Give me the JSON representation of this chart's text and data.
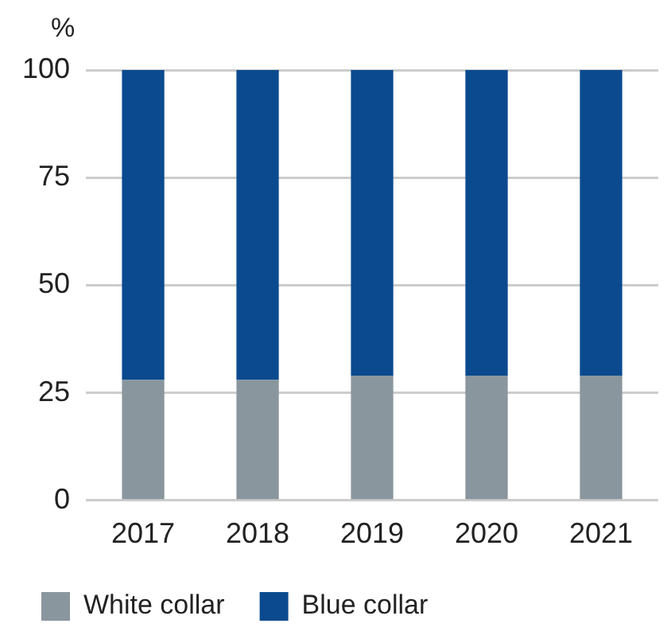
{
  "chart_data": {
    "type": "bar",
    "stacked": true,
    "ylabel": "%",
    "categories": [
      "2017",
      "2018",
      "2019",
      "2020",
      "2021"
    ],
    "series": [
      {
        "name": "White collar",
        "color": "#8a969e",
        "values": [
          28,
          28,
          29,
          29,
          29
        ]
      },
      {
        "name": "Blue collar",
        "color": "#0b4a8e",
        "values": [
          72,
          72,
          71,
          71,
          71
        ]
      }
    ],
    "ylim": [
      0,
      100
    ],
    "yticks": [
      0,
      25,
      50,
      75,
      100
    ],
    "grid": "y",
    "legend": "bottom"
  }
}
